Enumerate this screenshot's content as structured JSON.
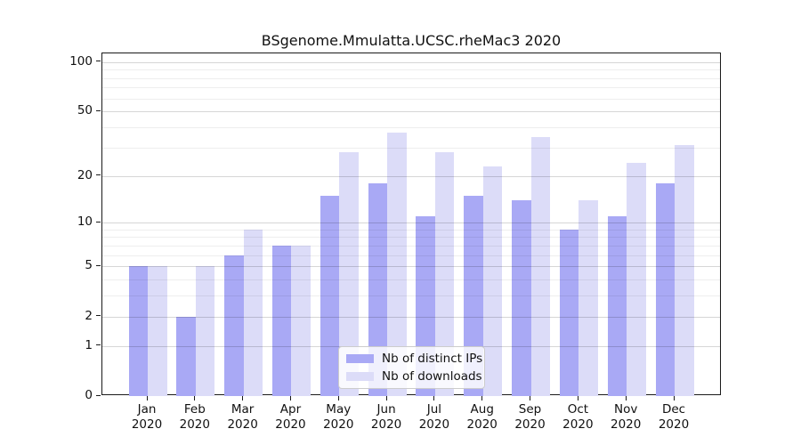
{
  "chart_data": {
    "type": "bar",
    "title": "BSgenome.Mmulatta.UCSC.rheMac3 2020",
    "categories": [
      "Jan",
      "Feb",
      "Mar",
      "Apr",
      "May",
      "Jun",
      "Jul",
      "Aug",
      "Sep",
      "Oct",
      "Nov",
      "Dec"
    ],
    "x_tick_second_line": "2020",
    "series": [
      {
        "name": "Nb of distinct IPs",
        "key": "distinct-ips",
        "color": "#a9a9f5",
        "values": [
          5,
          2,
          6,
          7,
          15,
          18,
          11,
          15,
          14,
          9,
          11,
          18
        ]
      },
      {
        "name": "Nb of downloads",
        "key": "downloads",
        "color": "#dcdcf8",
        "values": [
          5,
          5,
          9,
          7,
          28,
          37,
          28,
          23,
          35,
          14,
          24,
          31
        ]
      }
    ],
    "y_scale": "log1p",
    "ylim": [
      0,
      113
    ],
    "y_major_ticks": [
      0,
      1,
      2,
      5,
      10,
      20,
      50,
      100
    ],
    "y_minor_ticks": [
      3,
      4,
      6,
      7,
      8,
      9,
      30,
      40,
      60,
      70,
      80,
      90
    ],
    "grid": "horizontal",
    "legend": {
      "position": "lower-center"
    }
  },
  "colors": {
    "axis": "#1a1a1a",
    "text": "#111111",
    "grid_major": "rgba(0,0,0,0.16)",
    "grid_minor": "rgba(0,0,0,0.065)",
    "legend_border": "#cccccc"
  }
}
